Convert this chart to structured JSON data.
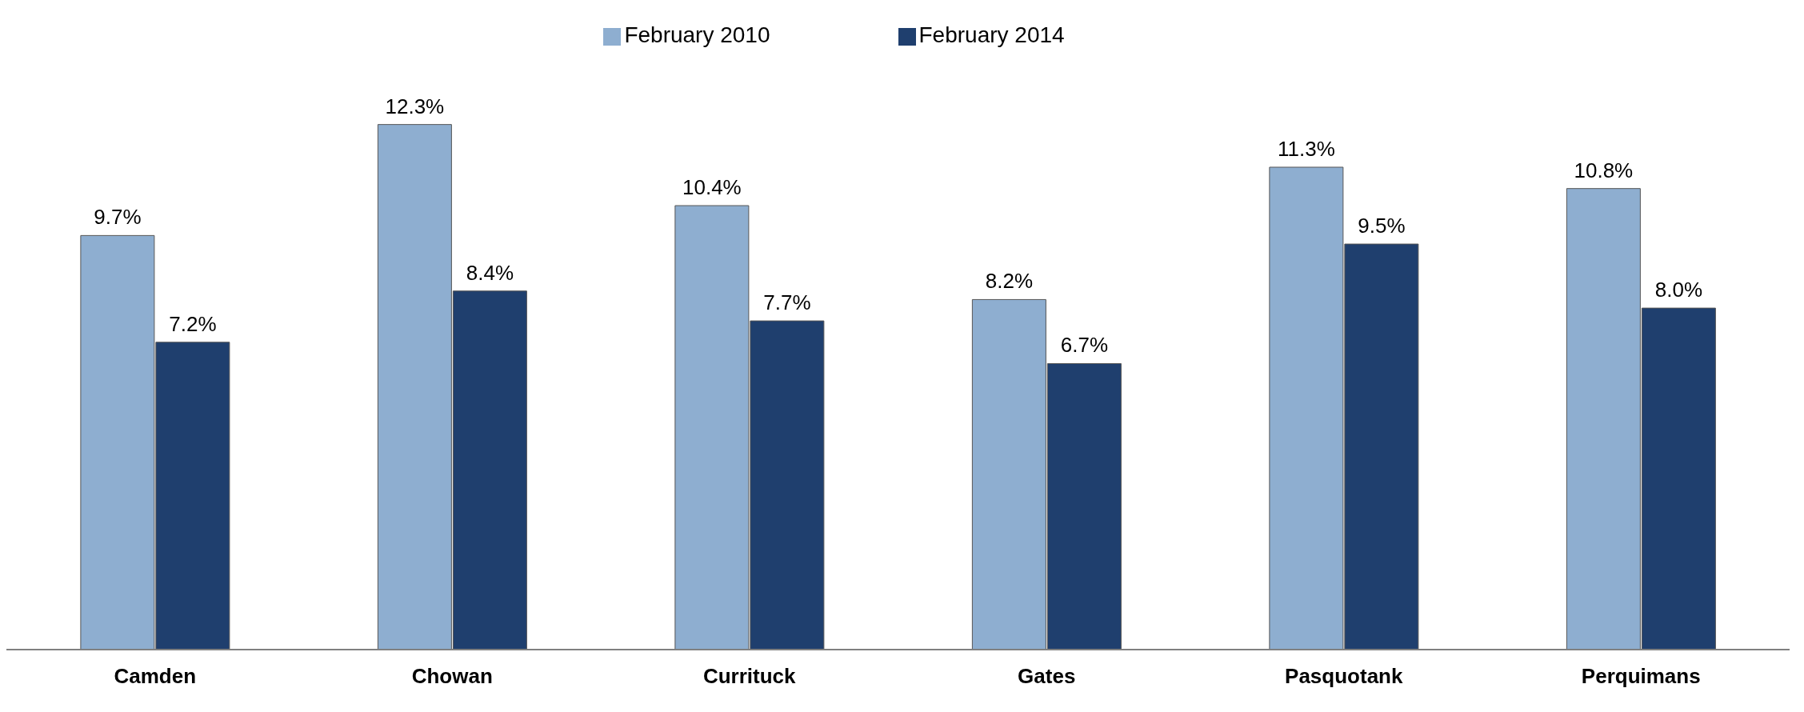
{
  "chart_data": {
    "type": "bar",
    "categories": [
      "Camden",
      "Chowan",
      "Currituck",
      "Gates",
      "Pasquotank",
      "Perquimans"
    ],
    "series": [
      {
        "name": "February 2010",
        "color": "#8eaed0",
        "values": [
          9.7,
          12.3,
          10.4,
          8.2,
          11.3,
          10.8
        ],
        "value_labels": [
          "9.7%",
          "12.3%",
          "10.4%",
          "8.2%",
          "11.3%",
          "10.8%"
        ]
      },
      {
        "name": "February 2014",
        "color": "#1f3f6e",
        "values": [
          7.2,
          8.4,
          7.7,
          6.7,
          9.5,
          8.0
        ],
        "value_labels": [
          "7.2%",
          "8.4%",
          "7.7%",
          "6.7%",
          "9.5%",
          "8.0%"
        ]
      }
    ],
    "legend": "top",
    "grid": false
  }
}
